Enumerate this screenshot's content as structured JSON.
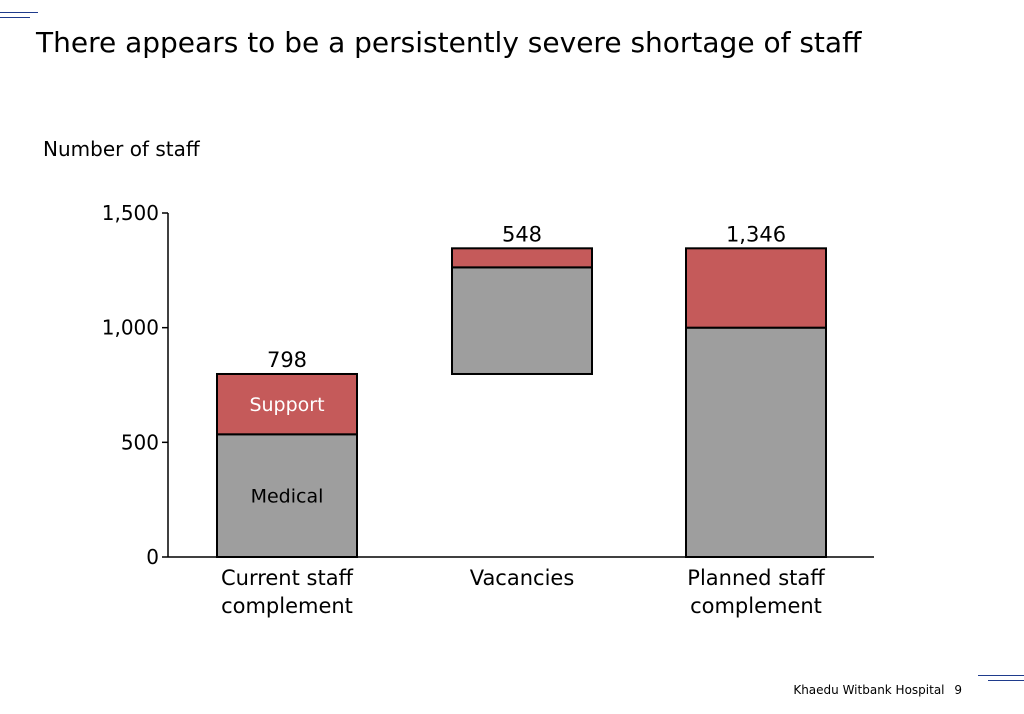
{
  "slide": {
    "title": "There appears to be a persistently severe shortage of staff"
  },
  "footer": {
    "source": "Khaedu Witbank Hospital",
    "page": "9"
  },
  "colors": {
    "medical": "#9e9e9e",
    "support": "#c55a5a",
    "decoration": "#1f3b8c"
  },
  "chart_data": {
    "type": "bar",
    "subtype": "waterfall-stacked",
    "ylabel": "Number of staff",
    "ylim": [
      0,
      1500
    ],
    "yticks": [
      0,
      500,
      1000,
      1500
    ],
    "ytick_labels": [
      "0",
      "500",
      "1,000",
      "1,500"
    ],
    "categories": [
      "Current staff complement",
      "Vacancies",
      "Planned staff complement"
    ],
    "category_lines": [
      [
        "Current staff",
        "complement"
      ],
      [
        "Vacancies"
      ],
      [
        "Planned staff",
        "complement"
      ]
    ],
    "totals": [
      "798",
      "548",
      "1,346"
    ],
    "series": [
      {
        "name": "Medical",
        "values": [
          535,
          465,
          1000
        ],
        "color": "#9e9e9e"
      },
      {
        "name": "Support",
        "values": [
          263,
          83,
          346
        ],
        "color": "#c55a5a"
      }
    ],
    "bases": [
      0,
      798,
      0
    ],
    "inline_labels": [
      {
        "series": "Medical",
        "category": 0,
        "text": "Medical",
        "text_color": "#000000"
      },
      {
        "series": "Support",
        "category": 0,
        "text": "Support",
        "text_color": "#ffffff"
      }
    ],
    "grid": false,
    "legend": "none"
  }
}
